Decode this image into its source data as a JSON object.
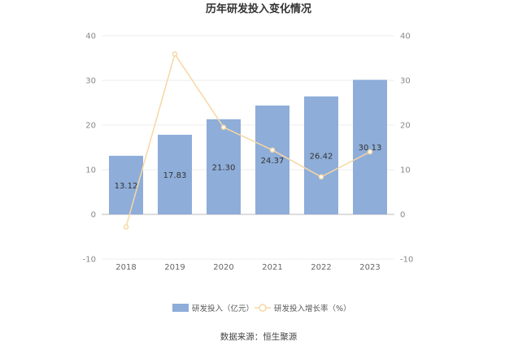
{
  "chart_data": {
    "type": "bar",
    "title": "历年研发投入变化情况",
    "categories": [
      "2018",
      "2019",
      "2020",
      "2021",
      "2022",
      "2023"
    ],
    "series": [
      {
        "name": "研发投入（亿元）",
        "type": "bar",
        "axis": "left",
        "color": "#8eadd9",
        "values": [
          13.12,
          17.83,
          21.3,
          24.37,
          26.42,
          30.13
        ],
        "labels": [
          "13.12",
          "17.83",
          "21.30",
          "24.37",
          "26.42",
          "30.13"
        ]
      },
      {
        "name": "研发投入增长率（%）",
        "type": "line",
        "axis": "right",
        "color": "#f7d7a3",
        "values": [
          -2.8,
          35.9,
          19.5,
          14.4,
          8.4,
          14.0
        ]
      }
    ],
    "ylim_left": [
      -10,
      40
    ],
    "ylim_right": [
      -10,
      40
    ],
    "yticks": [
      "-10",
      "0",
      "10",
      "20",
      "30",
      "40"
    ],
    "grid": true,
    "legend_position": "bottom"
  },
  "source": "数据来源：恒生聚源"
}
